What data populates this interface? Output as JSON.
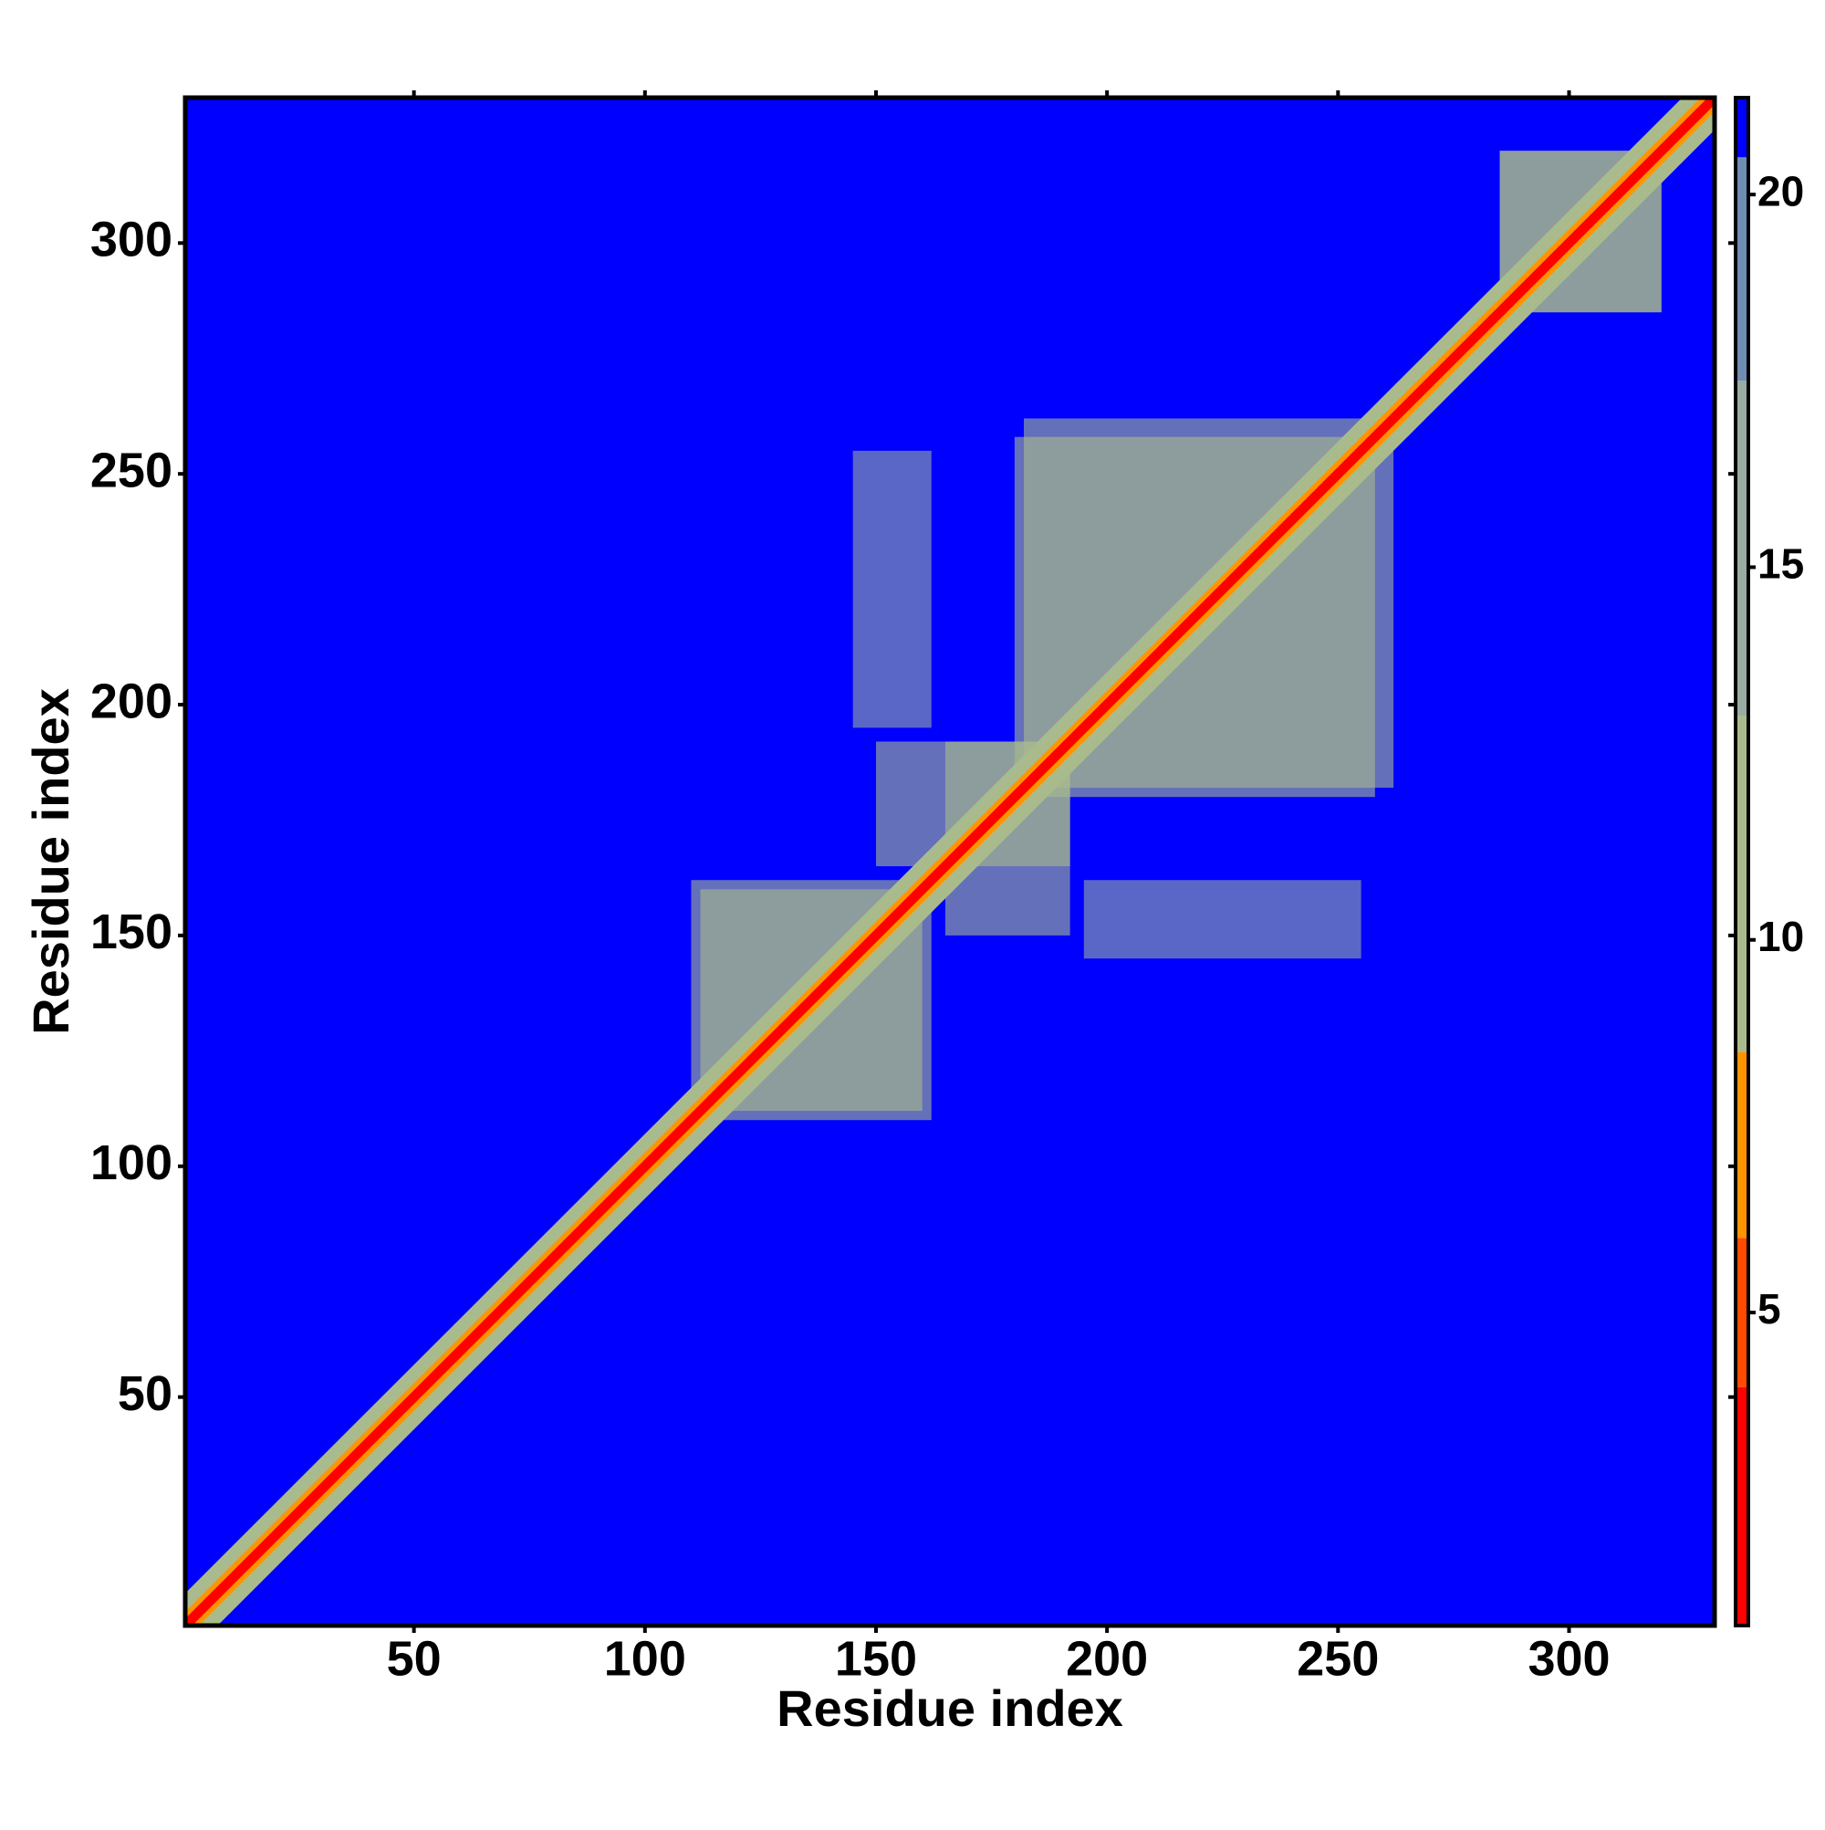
{
  "chart_data": {
    "type": "heatmap",
    "x_label": "Residue index",
    "y_label": "Residue index",
    "xlim": [
      0.5,
      331.5
    ],
    "ylim": [
      0.5,
      331.5
    ],
    "xticks": [
      50,
      100,
      150,
      200,
      250,
      300
    ],
    "yticks": [
      50,
      100,
      150,
      200,
      250,
      300
    ],
    "background_value": 21,
    "symmetric": true,
    "diagonal": [
      {
        "offset": 7,
        "value": 11
      },
      {
        "offset": 3,
        "value": 6
      },
      {
        "offset": 1.5,
        "value": 2
      }
    ],
    "patches": [
      {
        "x": [
          110,
          160
        ],
        "y": [
          112,
          162
        ],
        "value": 11
      },
      {
        "x": [
          145,
          162
        ],
        "y": [
          195,
          255
        ],
        "value": 13
      },
      {
        "x": [
          150,
          192
        ],
        "y": [
          165,
          192
        ],
        "value": 12
      },
      {
        "x": [
          182,
          258
        ],
        "y": [
          180,
          262
        ],
        "value": 12
      },
      {
        "x": [
          285,
          320
        ],
        "y": [
          285,
          320
        ],
        "value": 12
      }
    ],
    "colorbar": {
      "zlim": [
        0.8,
        21.3
      ],
      "ticks": [
        5,
        10,
        15,
        20
      ],
      "colorscale": [
        {
          "from": 0.8,
          "color": "#ff0000"
        },
        {
          "from": 4,
          "color": "#ff4a00"
        },
        {
          "from": 6,
          "color": "#ff9400"
        },
        {
          "from": 8.5,
          "color": "#a9bb8c"
        },
        {
          "from": 13,
          "color": "#97aca2"
        },
        {
          "from": 17.5,
          "color": "#6f8db2"
        },
        {
          "from": 20.5,
          "color": "#0000ff"
        }
      ]
    }
  }
}
